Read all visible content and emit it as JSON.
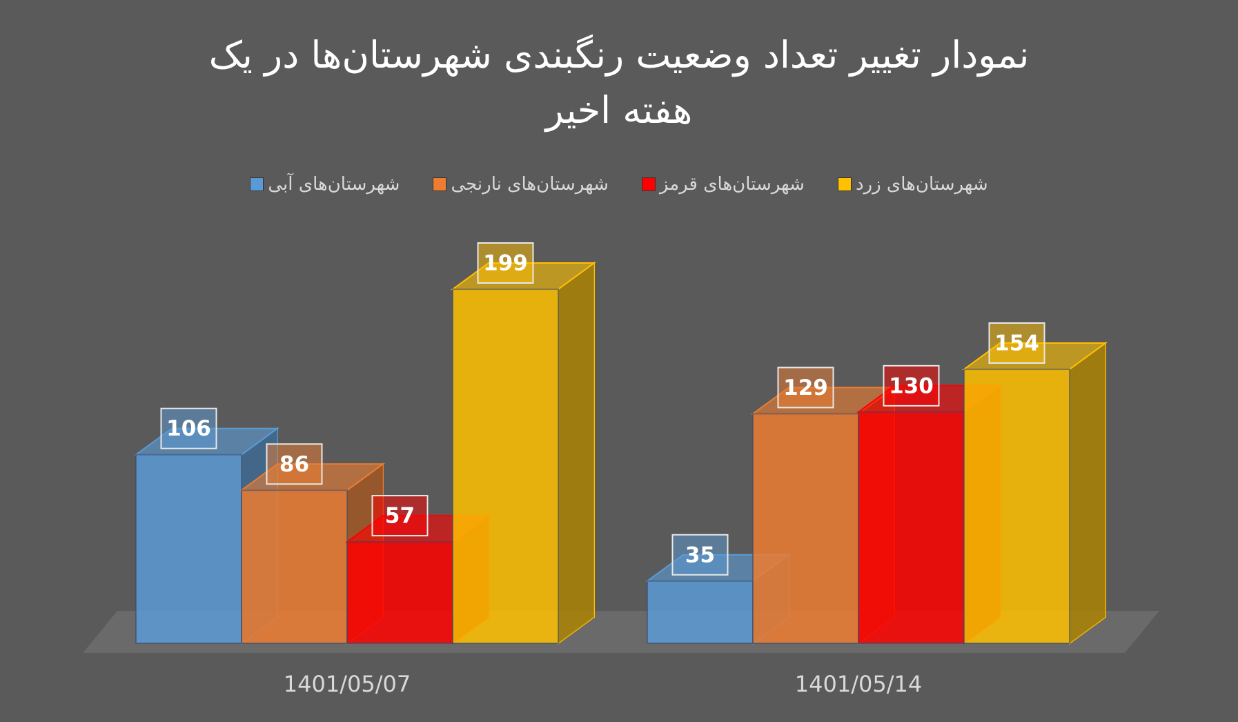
{
  "chart_data": {
    "type": "bar3d",
    "title": "نمودار تغییر تعداد وضعیت رنگبندی شهرستان‌ها در یک هفته اخیر",
    "categories": [
      "1401/05/07",
      "1401/05/14"
    ],
    "series": [
      {
        "name": "شهرستان‌های آبی",
        "color": "#5b9bd5",
        "values": [
          106,
          35
        ]
      },
      {
        "name": "شهرستان‌های نارنجی",
        "color": "#ed7d31",
        "values": [
          86,
          129
        ]
      },
      {
        "name": "شهرستان‌های قرمز",
        "color": "#ff0000",
        "values": [
          57,
          130
        ]
      },
      {
        "name": "شهرستان‌های زرد",
        "color": "#ffc000",
        "values": [
          199,
          154
        ]
      }
    ],
    "legend": "top"
  }
}
